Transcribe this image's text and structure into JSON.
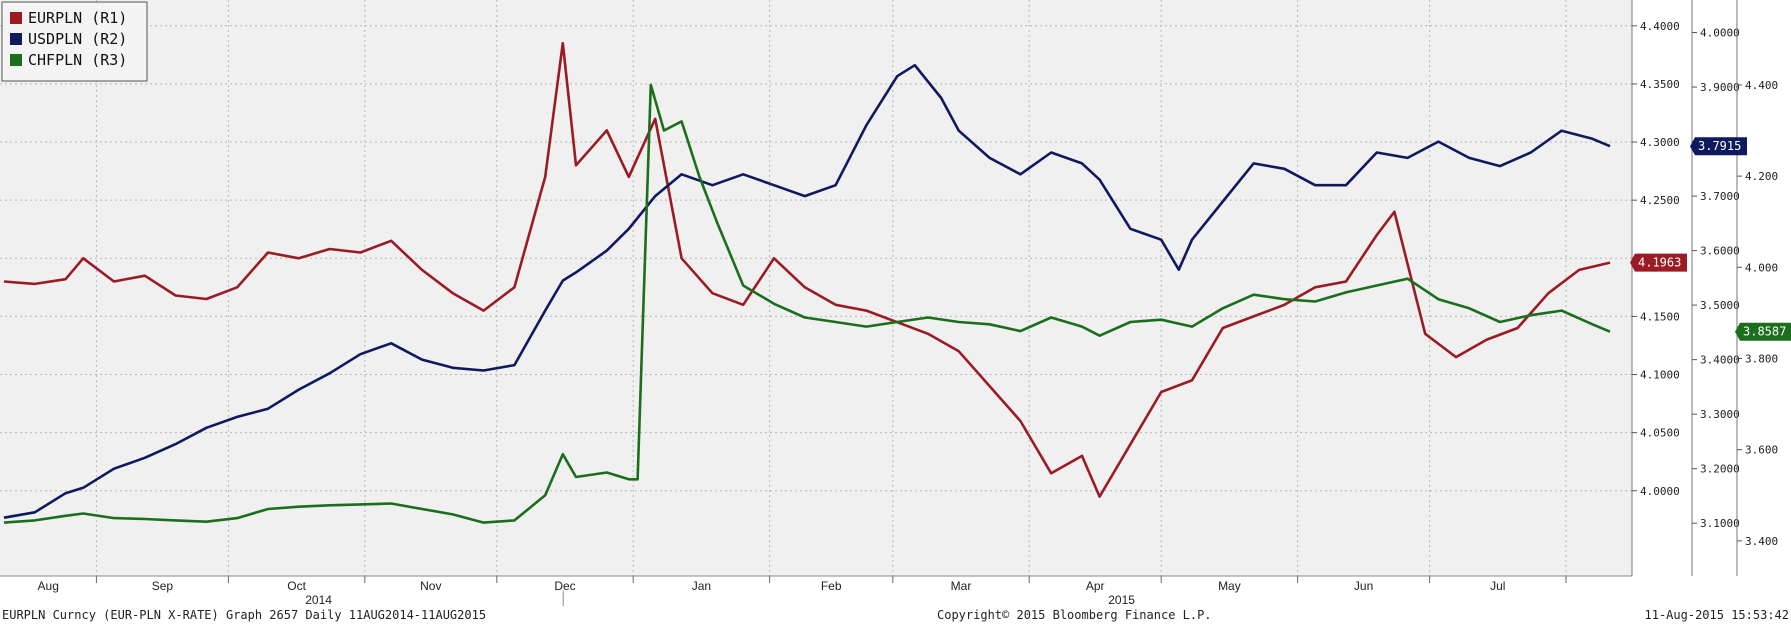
{
  "footer": {
    "left": "EURPLN Curncy (EUR-PLN X-RATE) Graph 2657  Daily 11AUG2014-11AUG2015",
    "center": "Copyright© 2015 Bloomberg Finance L.P.",
    "right": "11-Aug-2015 15:53:42"
  },
  "chart_data": {
    "type": "line",
    "grid": true,
    "legend_placement": "top-left",
    "x_tick_labels": [
      "Aug",
      "Sep",
      "Oct",
      "Nov",
      "Dec",
      "Jan",
      "Feb",
      "Mar",
      "Apr",
      "May",
      "Jun",
      "Jul"
    ],
    "x_year_labels": [
      "2014",
      "2015"
    ],
    "axes": {
      "R1": {
        "ylim": [
          3.98,
          4.405
        ],
        "ticks": [
          "4.4000",
          "4.3500",
          "4.3000",
          "4.2500",
          "4.2000",
          "4.1500",
          "4.1000",
          "4.0500",
          "4.0000"
        ]
      },
      "R2": {
        "ylim": [
          3.06,
          4.023
        ],
        "ticks": [
          "4.0000",
          "3.9000",
          "3.8000",
          "3.7000",
          "3.6000",
          "3.5000",
          "3.4000",
          "3.3000",
          "3.2000",
          "3.1000"
        ]
      },
      "R3": {
        "ylim": [
          3.38,
          4.47
        ],
        "ticks": [
          "4.400",
          "4.200",
          "4.000",
          "3.800",
          "3.600",
          "3.400"
        ]
      }
    },
    "series": [
      {
        "name": "EURPLN (R1)",
        "axis": "R1",
        "color": "#9b1b25",
        "last_value": "4.1963",
        "points": [
          [
            "2014-08-11",
            4.18
          ],
          [
            "2014-08-18",
            4.178
          ],
          [
            "2014-08-25",
            4.182
          ],
          [
            "2014-08-29",
            4.2
          ],
          [
            "2014-09-05",
            4.18
          ],
          [
            "2014-09-12",
            4.185
          ],
          [
            "2014-09-19",
            4.168
          ],
          [
            "2014-09-26",
            4.165
          ],
          [
            "2014-10-03",
            4.175
          ],
          [
            "2014-10-10",
            4.205
          ],
          [
            "2014-10-17",
            4.2
          ],
          [
            "2014-10-24",
            4.208
          ],
          [
            "2014-10-31",
            4.205
          ],
          [
            "2014-11-07",
            4.215
          ],
          [
            "2014-11-14",
            4.19
          ],
          [
            "2014-11-21",
            4.17
          ],
          [
            "2014-11-28",
            4.155
          ],
          [
            "2014-12-05",
            4.175
          ],
          [
            "2014-12-12",
            4.27
          ],
          [
            "2014-12-16",
            4.385
          ],
          [
            "2014-12-19",
            4.28
          ],
          [
            "2014-12-26",
            4.31
          ],
          [
            "2014-12-31",
            4.27
          ],
          [
            "2015-01-06",
            4.32
          ],
          [
            "2015-01-12",
            4.2
          ],
          [
            "2015-01-19",
            4.17
          ],
          [
            "2015-01-26",
            4.16
          ],
          [
            "2015-02-02",
            4.2
          ],
          [
            "2015-02-09",
            4.175
          ],
          [
            "2015-02-16",
            4.16
          ],
          [
            "2015-02-23",
            4.155
          ],
          [
            "2015-03-02",
            4.145
          ],
          [
            "2015-03-09",
            4.135
          ],
          [
            "2015-03-16",
            4.12
          ],
          [
            "2015-03-23",
            4.09
          ],
          [
            "2015-03-30",
            4.06
          ],
          [
            "2015-04-06",
            4.015
          ],
          [
            "2015-04-13",
            4.03
          ],
          [
            "2015-04-17",
            3.995
          ],
          [
            "2015-04-24",
            4.04
          ],
          [
            "2015-05-01",
            4.085
          ],
          [
            "2015-05-08",
            4.095
          ],
          [
            "2015-05-15",
            4.14
          ],
          [
            "2015-05-22",
            4.15
          ],
          [
            "2015-05-29",
            4.16
          ],
          [
            "2015-06-05",
            4.175
          ],
          [
            "2015-06-12",
            4.18
          ],
          [
            "2015-06-19",
            4.22
          ],
          [
            "2015-06-23",
            4.24
          ],
          [
            "2015-06-30",
            4.135
          ],
          [
            "2015-07-07",
            4.115
          ],
          [
            "2015-07-14",
            4.13
          ],
          [
            "2015-07-21",
            4.14
          ],
          [
            "2015-07-28",
            4.17
          ],
          [
            "2015-08-04",
            4.19
          ],
          [
            "2015-08-11",
            4.1963
          ]
        ]
      },
      {
        "name": "USDPLN (R2)",
        "axis": "R2",
        "color": "#0f1a5e",
        "last_value": "3.7915",
        "points": [
          [
            "2014-08-11",
            3.11
          ],
          [
            "2014-08-18",
            3.12
          ],
          [
            "2014-08-25",
            3.155
          ],
          [
            "2014-08-29",
            3.165
          ],
          [
            "2014-09-05",
            3.2
          ],
          [
            "2014-09-12",
            3.22
          ],
          [
            "2014-09-19",
            3.245
          ],
          [
            "2014-09-26",
            3.275
          ],
          [
            "2014-10-03",
            3.295
          ],
          [
            "2014-10-10",
            3.31
          ],
          [
            "2014-10-17",
            3.345
          ],
          [
            "2014-10-24",
            3.375
          ],
          [
            "2014-10-31",
            3.41
          ],
          [
            "2014-11-07",
            3.43
          ],
          [
            "2014-11-14",
            3.4
          ],
          [
            "2014-11-21",
            3.385
          ],
          [
            "2014-11-28",
            3.38
          ],
          [
            "2014-12-05",
            3.39
          ],
          [
            "2014-12-12",
            3.49
          ],
          [
            "2014-12-16",
            3.545
          ],
          [
            "2014-12-19",
            3.56
          ],
          [
            "2014-12-26",
            3.6
          ],
          [
            "2014-12-31",
            3.64
          ],
          [
            "2015-01-06",
            3.7
          ],
          [
            "2015-01-12",
            3.74
          ],
          [
            "2015-01-19",
            3.72
          ],
          [
            "2015-01-26",
            3.74
          ],
          [
            "2015-02-02",
            3.72
          ],
          [
            "2015-02-09",
            3.7
          ],
          [
            "2015-02-16",
            3.72
          ],
          [
            "2015-02-23",
            3.83
          ],
          [
            "2015-03-02",
            3.92
          ],
          [
            "2015-03-06",
            3.94
          ],
          [
            "2015-03-12",
            3.88
          ],
          [
            "2015-03-16",
            3.82
          ],
          [
            "2015-03-23",
            3.77
          ],
          [
            "2015-03-30",
            3.74
          ],
          [
            "2015-04-06",
            3.78
          ],
          [
            "2015-04-13",
            3.76
          ],
          [
            "2015-04-17",
            3.73
          ],
          [
            "2015-04-24",
            3.64
          ],
          [
            "2015-05-01",
            3.62
          ],
          [
            "2015-05-05",
            3.565
          ],
          [
            "2015-05-08",
            3.62
          ],
          [
            "2015-05-15",
            3.69
          ],
          [
            "2015-05-22",
            3.76
          ],
          [
            "2015-05-29",
            3.75
          ],
          [
            "2015-06-05",
            3.72
          ],
          [
            "2015-06-12",
            3.72
          ],
          [
            "2015-06-19",
            3.78
          ],
          [
            "2015-06-26",
            3.77
          ],
          [
            "2015-07-03",
            3.8
          ],
          [
            "2015-07-10",
            3.77
          ],
          [
            "2015-07-17",
            3.755
          ],
          [
            "2015-07-24",
            3.78
          ],
          [
            "2015-07-31",
            3.82
          ],
          [
            "2015-08-07",
            3.805
          ],
          [
            "2015-08-11",
            3.7915
          ]
        ]
      },
      {
        "name": "CHFPLN (R3)",
        "axis": "R3",
        "color": "#1b6e1b",
        "last_value": "3.8587",
        "points": [
          [
            "2014-08-11",
            3.44
          ],
          [
            "2014-08-18",
            3.445
          ],
          [
            "2014-08-25",
            3.455
          ],
          [
            "2014-08-29",
            3.46
          ],
          [
            "2014-09-05",
            3.45
          ],
          [
            "2014-09-12",
            3.448
          ],
          [
            "2014-09-19",
            3.445
          ],
          [
            "2014-09-26",
            3.442
          ],
          [
            "2014-10-03",
            3.45
          ],
          [
            "2014-10-10",
            3.47
          ],
          [
            "2014-10-17",
            3.475
          ],
          [
            "2014-10-24",
            3.478
          ],
          [
            "2014-10-31",
            3.48
          ],
          [
            "2014-11-07",
            3.482
          ],
          [
            "2014-11-14",
            3.47
          ],
          [
            "2014-11-21",
            3.458
          ],
          [
            "2014-11-28",
            3.44
          ],
          [
            "2014-12-05",
            3.445
          ],
          [
            "2014-12-12",
            3.5
          ],
          [
            "2014-12-16",
            3.59
          ],
          [
            "2014-12-19",
            3.54
          ],
          [
            "2014-12-26",
            3.55
          ],
          [
            "2014-12-31",
            3.535
          ],
          [
            "2015-01-02",
            3.535
          ],
          [
            "2015-01-05",
            4.4
          ],
          [
            "2015-01-08",
            4.3
          ],
          [
            "2015-01-12",
            4.32
          ],
          [
            "2015-01-16",
            4.2
          ],
          [
            "2015-01-20",
            4.1
          ],
          [
            "2015-01-26",
            3.96
          ],
          [
            "2015-02-02",
            3.92
          ],
          [
            "2015-02-09",
            3.89
          ],
          [
            "2015-02-16",
            3.88
          ],
          [
            "2015-02-23",
            3.87
          ],
          [
            "2015-03-02",
            3.88
          ],
          [
            "2015-03-09",
            3.89
          ],
          [
            "2015-03-16",
            3.88
          ],
          [
            "2015-03-23",
            3.875
          ],
          [
            "2015-03-30",
            3.86
          ],
          [
            "2015-04-06",
            3.89
          ],
          [
            "2015-04-13",
            3.87
          ],
          [
            "2015-04-17",
            3.85
          ],
          [
            "2015-04-24",
            3.88
          ],
          [
            "2015-05-01",
            3.885
          ],
          [
            "2015-05-08",
            3.87
          ],
          [
            "2015-05-15",
            3.91
          ],
          [
            "2015-05-22",
            3.94
          ],
          [
            "2015-05-29",
            3.93
          ],
          [
            "2015-06-05",
            3.925
          ],
          [
            "2015-06-12",
            3.945
          ],
          [
            "2015-06-19",
            3.96
          ],
          [
            "2015-06-26",
            3.975
          ],
          [
            "2015-07-03",
            3.93
          ],
          [
            "2015-07-10",
            3.91
          ],
          [
            "2015-07-17",
            3.88
          ],
          [
            "2015-07-24",
            3.895
          ],
          [
            "2015-07-31",
            3.905
          ],
          [
            "2015-08-07",
            3.875
          ],
          [
            "2015-08-11",
            3.8587
          ]
        ]
      }
    ]
  }
}
